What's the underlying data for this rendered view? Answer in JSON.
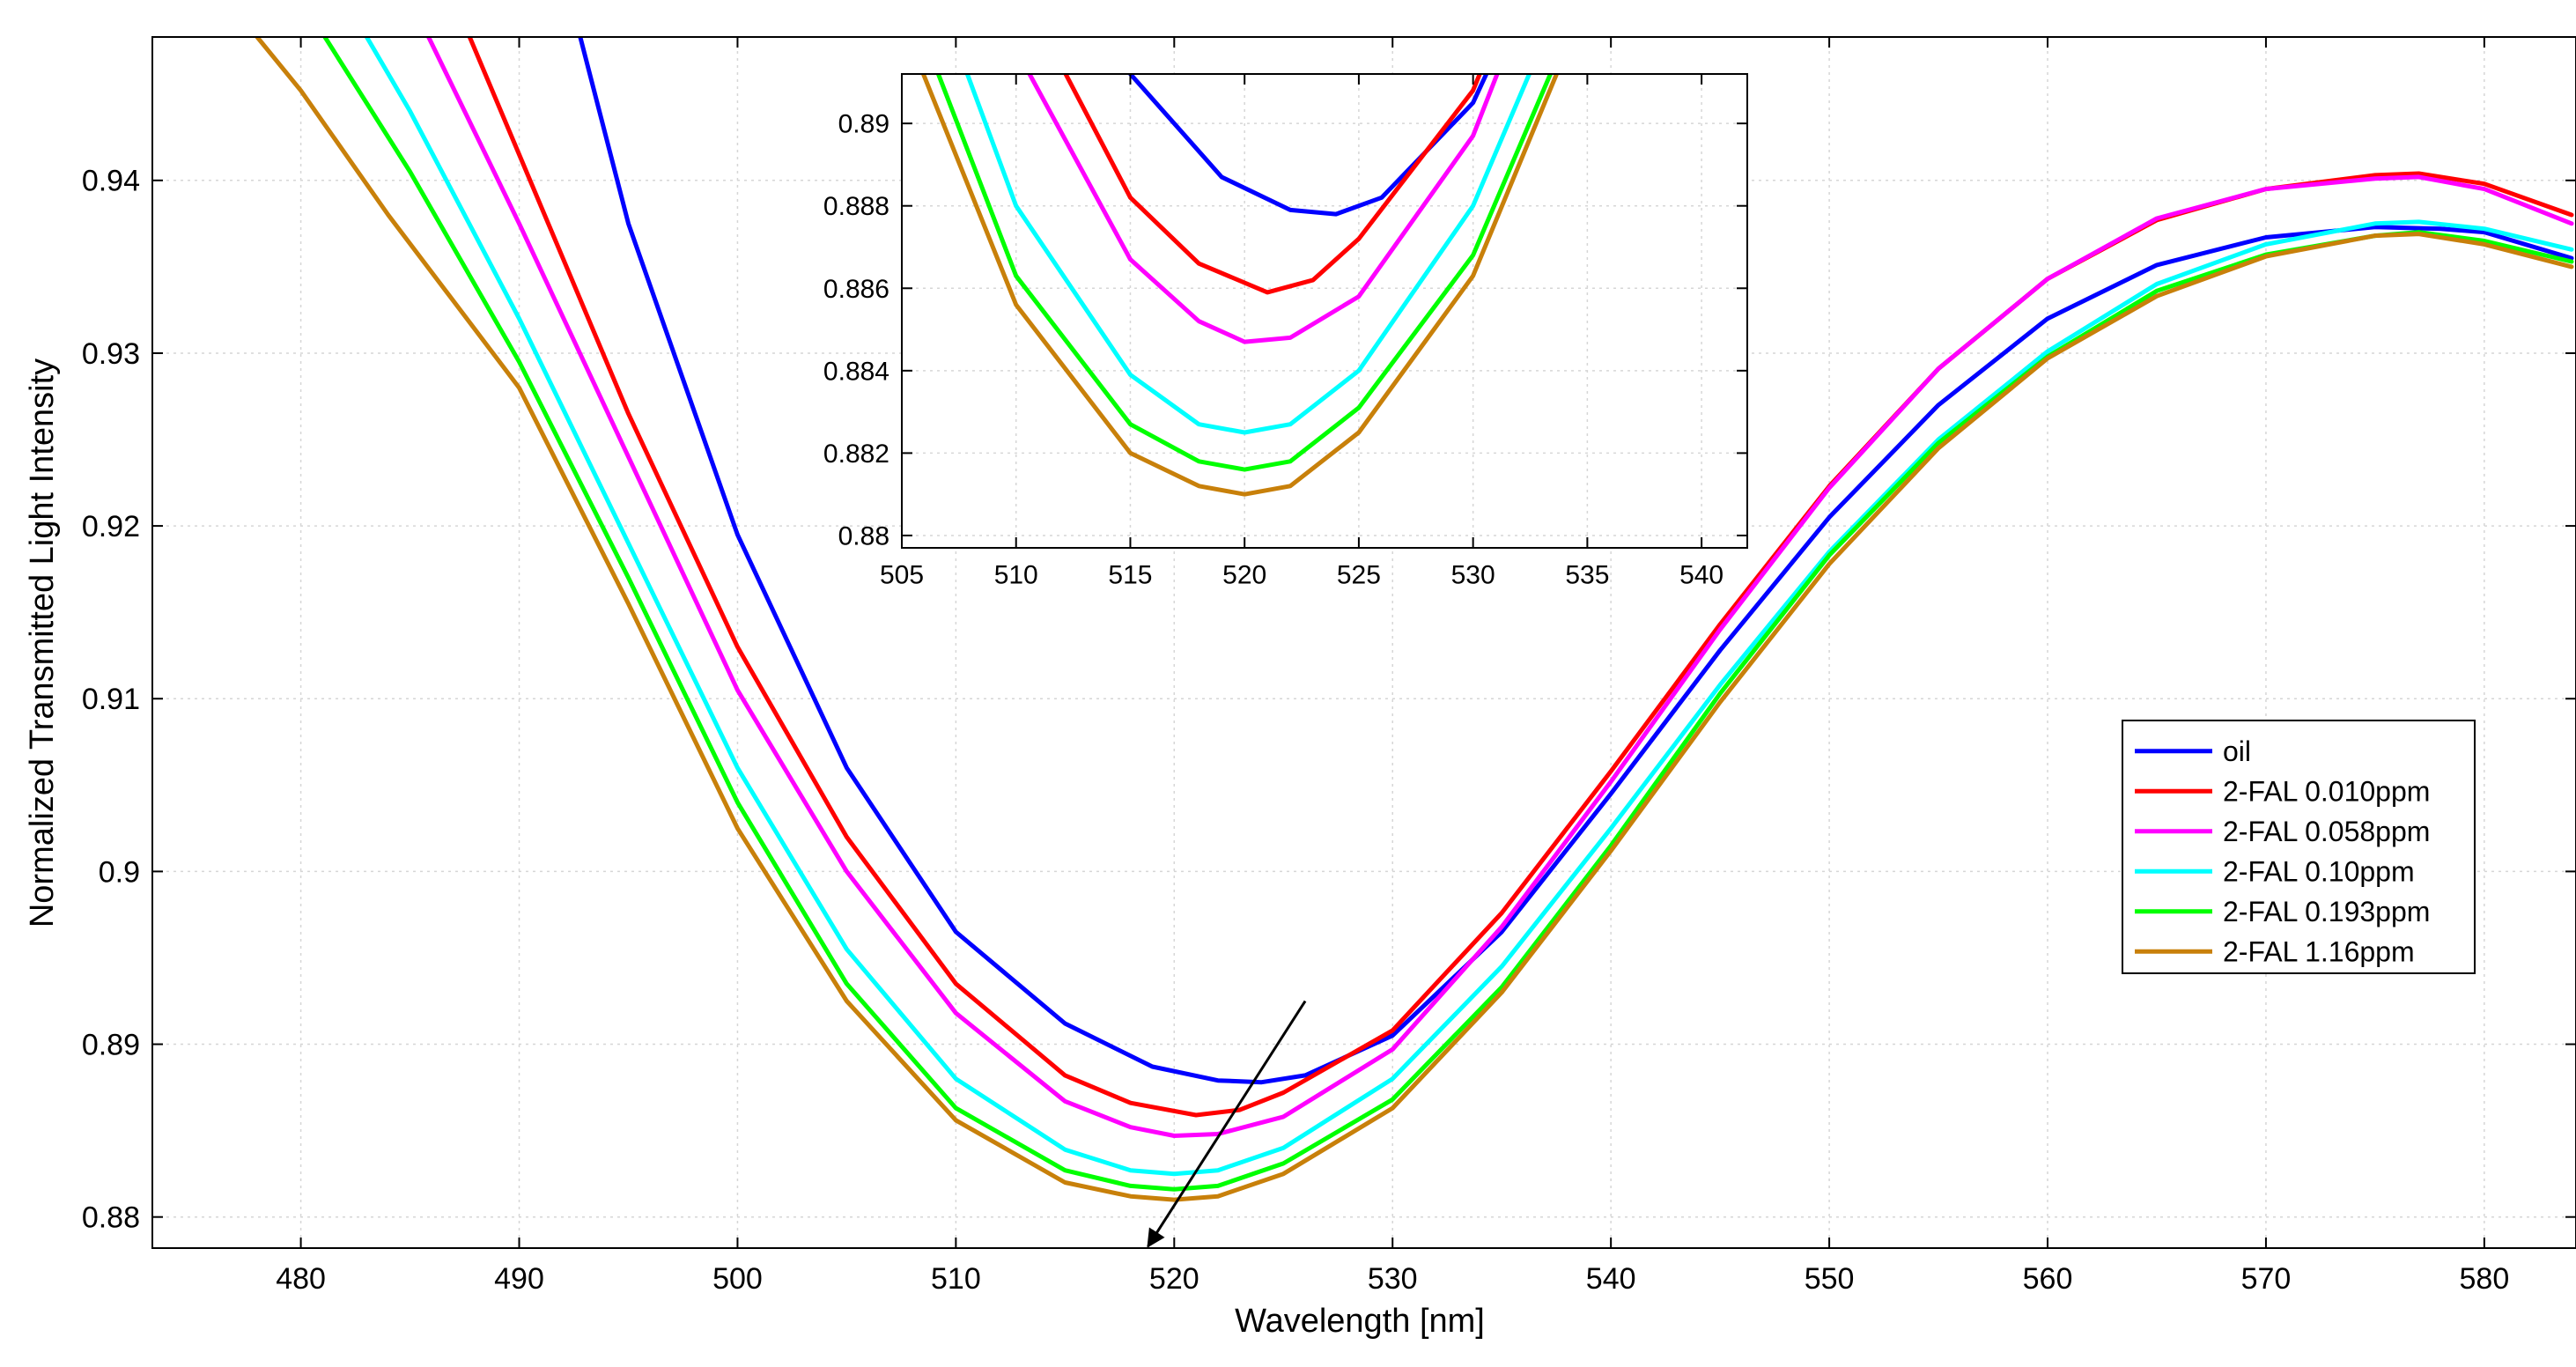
{
  "chart_data": {
    "type": "line",
    "xlabel": "Wavelength [nm]",
    "ylabel": "Normalized Transmitted Light Intensity",
    "xlim": [
      473.2,
      584.2
    ],
    "ylim": [
      0.8782,
      0.9483
    ],
    "xticks": [
      480,
      490,
      500,
      510,
      520,
      530,
      540,
      550,
      560,
      570,
      580
    ],
    "yticks": [
      0.88,
      0.89,
      0.9,
      0.91,
      0.92,
      0.93,
      0.94
    ],
    "ytick_labels": [
      "0.88",
      "0.89",
      "0.9",
      "0.91",
      "0.92",
      "0.93",
      "0.94"
    ],
    "grid": true,
    "legend_position": "right",
    "annotation": {
      "type": "arrow",
      "from": [
        526.0,
        0.8925
      ],
      "to": [
        518.8,
        0.8783
      ]
    },
    "series": [
      {
        "name": "oil",
        "color": "#0000ff",
        "x": [
          490,
          495,
          500,
          505,
          510,
          515,
          519,
          522,
          524,
          526,
          530,
          535,
          540,
          545,
          550,
          555,
          560,
          565,
          570,
          575,
          578,
          580,
          584
        ],
        "y": [
          0.962,
          0.9375,
          0.9195,
          0.906,
          0.8965,
          0.8912,
          0.8887,
          0.8879,
          0.8878,
          0.8882,
          0.8905,
          0.8965,
          0.9045,
          0.9128,
          0.9205,
          0.927,
          0.932,
          0.9351,
          0.9367,
          0.9373,
          0.9372,
          0.937,
          0.9355
        ]
      },
      {
        "name": "2-FAL 0.010ppm",
        "color": "#ff0000",
        "x": [
          487,
          490,
          495,
          500,
          505,
          510,
          515,
          518,
          521,
          523,
          525,
          530,
          535,
          540,
          545,
          550,
          555,
          560,
          565,
          570,
          575,
          577,
          580,
          584
        ],
        "y": [
          0.9505,
          0.9415,
          0.9265,
          0.913,
          0.902,
          0.8935,
          0.8882,
          0.8866,
          0.8859,
          0.8862,
          0.8872,
          0.8908,
          0.8976,
          0.9058,
          0.9143,
          0.9223,
          0.9291,
          0.9343,
          0.9377,
          0.9395,
          0.9403,
          0.9404,
          0.9398,
          0.938
        ]
      },
      {
        "name": "2-FAL 0.058ppm",
        "color": "#ff00ff",
        "x": [
          485,
          490,
          495,
          500,
          505,
          510,
          515,
          518,
          520,
          522,
          525,
          530,
          535,
          540,
          545,
          550,
          555,
          560,
          565,
          570,
          575,
          577,
          580,
          584
        ],
        "y": [
          0.9505,
          0.9375,
          0.924,
          0.9105,
          0.9,
          0.8918,
          0.8867,
          0.8852,
          0.8847,
          0.8848,
          0.8858,
          0.8897,
          0.8968,
          0.9052,
          0.914,
          0.9222,
          0.9291,
          0.9343,
          0.9378,
          0.9395,
          0.9401,
          0.9402,
          0.9395,
          0.9375
        ]
      },
      {
        "name": "2-FAL 0.10ppm",
        "color": "#00ffff",
        "x": [
          482,
          485,
          490,
          495,
          500,
          505,
          510,
          515,
          518,
          520,
          522,
          525,
          530,
          535,
          540,
          545,
          550,
          555,
          560,
          565,
          570,
          575,
          577,
          580,
          584
        ],
        "y": [
          0.9505,
          0.944,
          0.932,
          0.919,
          0.906,
          0.8955,
          0.888,
          0.8839,
          0.8827,
          0.8825,
          0.8827,
          0.884,
          0.888,
          0.8945,
          0.9025,
          0.9108,
          0.9185,
          0.925,
          0.9301,
          0.934,
          0.9363,
          0.9375,
          0.9376,
          0.9372,
          0.936
        ]
      },
      {
        "name": "2-FAL 0.193ppm",
        "color": "#00ff00",
        "x": [
          480,
          485,
          490,
          495,
          500,
          505,
          510,
          515,
          518,
          520,
          522,
          525,
          530,
          535,
          540,
          545,
          550,
          555,
          560,
          565,
          570,
          575,
          577,
          580,
          584
        ],
        "y": [
          0.9505,
          0.9405,
          0.9295,
          0.917,
          0.904,
          0.8935,
          0.8863,
          0.8827,
          0.8818,
          0.8816,
          0.8818,
          0.8831,
          0.8868,
          0.8933,
          0.9015,
          0.9103,
          0.9183,
          0.9248,
          0.9298,
          0.9336,
          0.9357,
          0.9368,
          0.937,
          0.9365,
          0.9353
        ]
      },
      {
        "name": "2-FAL 1.16ppm",
        "color": "#c8800a",
        "x": [
          478,
          480,
          484,
          490,
          495,
          500,
          505,
          510,
          515,
          518,
          520,
          522,
          525,
          530,
          535,
          540,
          545,
          550,
          555,
          560,
          565,
          570,
          575,
          577,
          580,
          584
        ],
        "y": [
          0.9483,
          0.9452,
          0.938,
          0.928,
          0.9155,
          0.9025,
          0.8925,
          0.8856,
          0.882,
          0.8812,
          0.881,
          0.8812,
          0.8825,
          0.8863,
          0.893,
          0.9012,
          0.9098,
          0.9178,
          0.9245,
          0.9297,
          0.9333,
          0.9356,
          0.9368,
          0.9369,
          0.9363,
          0.935
        ]
      }
    ],
    "inset": {
      "xlim": [
        505,
        542
      ],
      "ylim": [
        0.8797,
        0.8912
      ],
      "xticks": [
        505,
        510,
        515,
        520,
        525,
        530,
        535,
        540
      ],
      "yticks": [
        0.88,
        0.882,
        0.884,
        0.886,
        0.888,
        0.89
      ],
      "ytick_labels": [
        "0.88",
        "0.882",
        "0.884",
        "0.886",
        "0.888",
        "0.89"
      ]
    }
  }
}
